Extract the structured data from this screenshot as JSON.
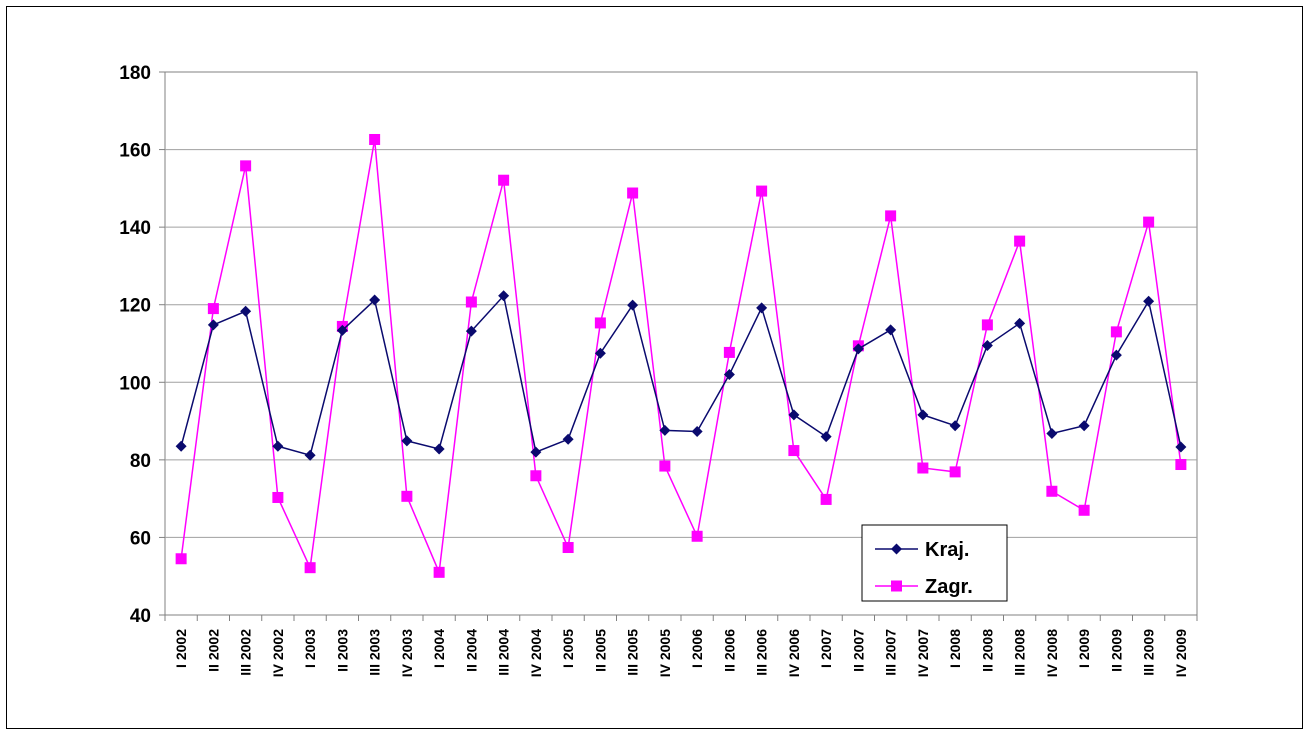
{
  "chart_data": {
    "type": "line",
    "title": "",
    "xlabel": "",
    "ylabel": "",
    "ylim": [
      40,
      180
    ],
    "yticks": [
      40,
      60,
      80,
      100,
      120,
      140,
      160,
      180
    ],
    "grid": true,
    "legend_position": "lower-right",
    "categories": [
      "I 2002",
      "II 2002",
      "III 2002",
      "IV 2002",
      "I 2003",
      "II 2003",
      "III 2003",
      "IV 2003",
      "I 2004",
      "II 2004",
      "III 2004",
      "IV 2004",
      "I 2005",
      "II 2005",
      "III 2005",
      "IV 2005",
      "I 2006",
      "II 2006",
      "III 2006",
      "IV 2006",
      "I 2007",
      "II 2007",
      "III 2007",
      "IV 2007",
      "I 2008",
      "II 2008",
      "III 2008",
      "IV 2008",
      "I 2009",
      "II 2009",
      "III 2009",
      "IV 2009"
    ],
    "series": [
      {
        "name": "Kraj.",
        "color": "#0a0a6e",
        "marker": "diamond",
        "values": [
          83.5,
          114.8,
          118.3,
          83.5,
          81.2,
          113.4,
          121.2,
          84.9,
          82.8,
          113.2,
          122.3,
          82.0,
          85.3,
          107.5,
          119.9,
          87.6,
          87.3,
          102.0,
          119.2,
          91.6,
          86.0,
          108.6,
          113.5,
          91.6,
          88.8,
          109.5,
          115.2,
          86.8,
          88.8,
          107.0,
          120.9,
          83.3
        ]
      },
      {
        "name": "Zagr.",
        "color": "#ff00ff",
        "marker": "square",
        "values": [
          54.5,
          119.0,
          155.8,
          70.3,
          52.2,
          114.4,
          162.6,
          70.6,
          51.0,
          120.7,
          152.1,
          75.9,
          57.4,
          115.3,
          148.8,
          78.4,
          60.3,
          107.7,
          149.3,
          82.4,
          69.8,
          109.4,
          142.9,
          77.9,
          76.9,
          114.8,
          136.4,
          71.9,
          67.0,
          113.0,
          141.3,
          78.8
        ]
      }
    ]
  }
}
